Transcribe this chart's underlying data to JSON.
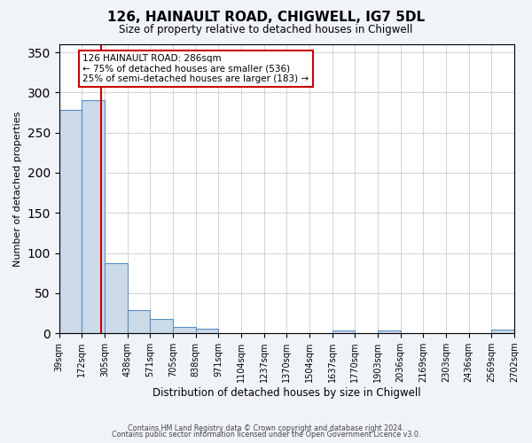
{
  "title": "126, HAINAULT ROAD, CHIGWELL, IG7 5DL",
  "subtitle": "Size of property relative to detached houses in Chigwell",
  "xlabel": "Distribution of detached houses by size in Chigwell",
  "ylabel": "Number of detached properties",
  "bar_edges": [
    39,
    172,
    305,
    438,
    571,
    705,
    838,
    971,
    1104,
    1237,
    1370,
    1504,
    1637,
    1770,
    1903,
    2036,
    2169,
    2303,
    2436,
    2569,
    2702
  ],
  "bar_heights": [
    278,
    290,
    87,
    29,
    18,
    8,
    6,
    0,
    0,
    0,
    0,
    0,
    3,
    0,
    3,
    0,
    0,
    0,
    0,
    4
  ],
  "bar_color": "#ccd9e8",
  "bar_edge_color": "#5a8fc2",
  "vline_x": 286,
  "vline_color": "#cc0000",
  "annotation_line1": "126 HAINAULT ROAD: 286sqm",
  "annotation_line2": "← 75% of detached houses are smaller (536)",
  "annotation_line3": "25% of semi-detached houses are larger (183) →",
  "annotation_box_color": "#ffffff",
  "annotation_box_edge": "#cc0000",
  "ylim": [
    0,
    360
  ],
  "yticks": [
    0,
    50,
    100,
    150,
    200,
    250,
    300,
    350
  ],
  "tick_labels": [
    "39sqm",
    "172sqm",
    "305sqm",
    "438sqm",
    "571sqm",
    "705sqm",
    "838sqm",
    "971sqm",
    "1104sqm",
    "1237sqm",
    "1370sqm",
    "1504sqm",
    "1637sqm",
    "1770sqm",
    "1903sqm",
    "2036sqm",
    "2169sqm",
    "2303sqm",
    "2436sqm",
    "2569sqm",
    "2702sqm"
  ],
  "bg_color": "#f0f4f8",
  "plot_bg_color": "#ffffff",
  "footer1": "Contains HM Land Registry data © Crown copyright and database right 2024.",
  "footer2": "Contains public sector information licensed under the Open Government Licence v3.0."
}
